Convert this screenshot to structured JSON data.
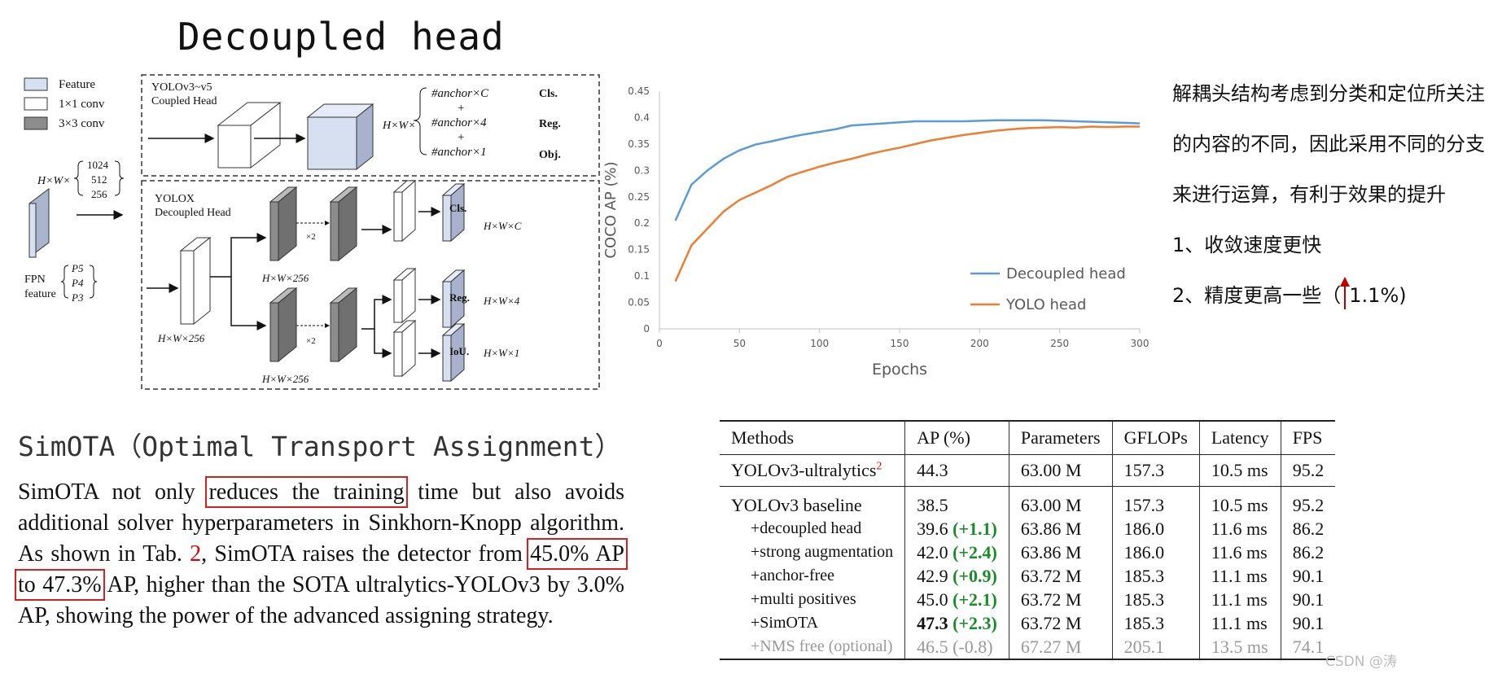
{
  "heading": "Decoupled head",
  "diagram": {
    "legend": [
      "Feature",
      "1×1 conv",
      "3×3 conv"
    ],
    "coupled_title": [
      "YOLOv3~v5",
      "Coupled Head"
    ],
    "decoupled_title": [
      "YOLOX",
      "Decoupled Head"
    ],
    "input_dim": "H×W×",
    "input_channels": [
      "1024",
      "512",
      "256"
    ],
    "fpn_label": [
      "FPN",
      "feature"
    ],
    "fpn_levels": [
      "P5",
      "P4",
      "P3"
    ],
    "coupled_hw": "H×W×",
    "coupled_out": [
      "#anchor×C",
      "+",
      "#anchor×4",
      "+",
      "#anchor×1"
    ],
    "coupled_out_labels": [
      "Cls.",
      "Reg.",
      "Obj."
    ],
    "dec_first": "H×W×256",
    "dec_branch": "H×W×256",
    "x2": "×2",
    "head_labels": [
      "Cls.",
      "Reg.",
      "IoU."
    ],
    "head_dims": [
      "H×W×C",
      "H×W×4",
      "H×W×1"
    ]
  },
  "chart_data": {
    "type": "line",
    "ylabel": "COCO AP (%)",
    "xlabel": "Epochs",
    "xlim": [
      0,
      300
    ],
    "ylim": [
      0,
      0.45
    ],
    "xticks": [
      "0",
      "50",
      "100",
      "150",
      "200",
      "250",
      "300"
    ],
    "yticks": [
      "0",
      "0.05",
      "0.1",
      "0.15",
      "0.2",
      "0.25",
      "0.3",
      "0.35",
      "0.4",
      "0.45"
    ],
    "legend_position": "bottom-right",
    "series": [
      {
        "name": "Decoupled head",
        "color": "#5b9bd5",
        "x": [
          10,
          20,
          30,
          40,
          50,
          60,
          70,
          80,
          90,
          100,
          110,
          120,
          130,
          140,
          150,
          160,
          170,
          180,
          190,
          200,
          210,
          220,
          230,
          240,
          250,
          260,
          270,
          280,
          290,
          300
        ],
        "y": [
          0.205,
          0.273,
          0.3,
          0.322,
          0.338,
          0.349,
          0.355,
          0.362,
          0.368,
          0.373,
          0.378,
          0.385,
          0.387,
          0.389,
          0.391,
          0.393,
          0.393,
          0.393,
          0.393,
          0.394,
          0.395,
          0.395,
          0.395,
          0.395,
          0.394,
          0.393,
          0.392,
          0.391,
          0.39,
          0.389
        ]
      },
      {
        "name": "YOLO head",
        "color": "#ed7d31",
        "x": [
          10,
          20,
          30,
          40,
          50,
          60,
          70,
          80,
          90,
          100,
          110,
          120,
          130,
          140,
          150,
          160,
          170,
          180,
          190,
          200,
          210,
          220,
          230,
          240,
          250,
          260,
          270,
          280,
          290,
          300
        ],
        "y": [
          0.09,
          0.158,
          0.19,
          0.222,
          0.244,
          0.258,
          0.272,
          0.288,
          0.298,
          0.307,
          0.315,
          0.322,
          0.33,
          0.337,
          0.343,
          0.35,
          0.357,
          0.362,
          0.367,
          0.371,
          0.375,
          0.378,
          0.38,
          0.381,
          0.382,
          0.381,
          0.383,
          0.382,
          0.383,
          0.383
        ]
      }
    ]
  },
  "notes": {
    "line1": "解耦头结构考虑到分类和定位所关注的内容的不同，因此采用不同的分支来进行运算，有利于效果的提升",
    "item1": "1、收敛速度更快",
    "item2_prefix": "2、精度更高一些（",
    "item2_value": "1.1%)",
    "arrow_color": "#c00000"
  },
  "simota": {
    "title": "SimOTA（Optimal Transport Assignment）",
    "p1": "SimOTA not only ",
    "hl1": "reduces the training",
    "p2": " time but also avoids additional solver hyperparameters in Sinkhorn-Knopp algorithm. As shown in Tab. ",
    "ref": "2",
    "p3": ", SimOTA raises the detector from ",
    "hl2": "45.0% AP to 47.3%",
    "p4": " AP, higher than the SOTA ultralytics-YOLOv3 by 3.0% AP, showing the power of the advanced assigning strategy.",
    "highlight_color": "#d62020"
  },
  "table": {
    "headers": [
      "Methods",
      "AP (%)",
      "Parameters",
      "GFLOPs",
      "Latency",
      "FPS"
    ],
    "ultra": {
      "method": "YOLOv3-ultralytics",
      "sup": "2",
      "ap": "44.3",
      "params": "63.00 M",
      "gflops": "157.3",
      "latency": "10.5 ms",
      "fps": "95.2"
    },
    "rows": [
      {
        "method": "YOLOv3 baseline",
        "ap": "38.5",
        "gain": "",
        "params": "63.00 M",
        "gflops": "157.3",
        "latency": "10.5 ms",
        "fps": "95.2"
      },
      {
        "method": "+decoupled head",
        "ap": "39.6",
        "gain": "(+1.1)",
        "params": "63.86 M",
        "gflops": "186.0",
        "latency": "11.6 ms",
        "fps": "86.2"
      },
      {
        "method": "+strong augmentation",
        "ap": "42.0",
        "gain": "(+2.4)",
        "params": "63.86 M",
        "gflops": "186.0",
        "latency": "11.6 ms",
        "fps": "86.2"
      },
      {
        "method": "+anchor-free",
        "ap": "42.9",
        "gain": "(+0.9)",
        "params": "63.72 M",
        "gflops": "185.3",
        "latency": "11.1 ms",
        "fps": "90.1"
      },
      {
        "method": "+multi positives",
        "ap": "45.0",
        "gain": "(+2.1)",
        "params": "63.72 M",
        "gflops": "185.3",
        "latency": "11.1 ms",
        "fps": "90.1"
      },
      {
        "method": "+SimOTA",
        "ap": "47.3",
        "gain": "(+2.3)",
        "params": "63.72 M",
        "gflops": "185.3",
        "latency": "11.1 ms",
        "fps": "90.1"
      }
    ],
    "nms": {
      "method": "+NMS free (optional)",
      "ap": "46.5 (-0.8)",
      "params": "67.27 M",
      "gflops": "205.1",
      "latency": "13.5 ms",
      "fps": "74.1"
    }
  },
  "watermark": "CSDN @涛"
}
